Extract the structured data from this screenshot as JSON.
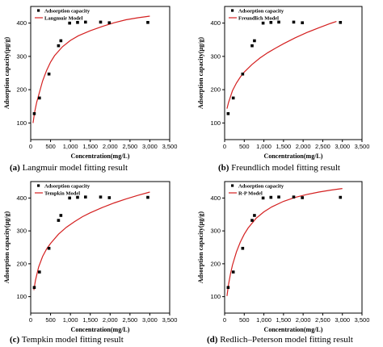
{
  "chart_data": [
    {
      "type": "scatter",
      "caption_letter": "(a)",
      "caption_text": "Langmuir model fitting result",
      "xlabel": "Concentration(mg/L)",
      "ylabel": "Adsorption capacity(μg/g)",
      "xlim": [
        0,
        3500
      ],
      "ylim": [
        50,
        450
      ],
      "xticks": [
        "0",
        "500",
        "1,000",
        "1,500",
        "2,000",
        "2,500",
        "3,000",
        "3,500"
      ],
      "xtick_values": [
        0,
        500,
        1000,
        1500,
        2000,
        2500,
        3000,
        3500
      ],
      "yticks": [
        "100",
        "200",
        "300",
        "400"
      ],
      "ytick_values": [
        100,
        200,
        300,
        400
      ],
      "legend": {
        "placement": "top-left",
        "scatter_label": "Adsorption capacity",
        "model_label": "Langmuir Model"
      },
      "series": [
        {
          "name": "Adsorption capacity",
          "kind": "points",
          "x": [
            90,
            220,
            460,
            700,
            760,
            980,
            1180,
            1380,
            1760,
            1980,
            2950
          ],
          "y": [
            128,
            175,
            247,
            332,
            347,
            400,
            402,
            403,
            403,
            401,
            402
          ]
        },
        {
          "name": "Langmuir Model",
          "kind": "fit",
          "color": "#d42020",
          "x": [
            60,
            100,
            150,
            200,
            300,
            400,
            500,
            600,
            800,
            1000,
            1200,
            1500,
            1800,
            2100,
            2400,
            2700,
            3000
          ],
          "y": [
            100,
            133,
            162,
            183,
            226,
            258,
            283,
            302,
            329,
            348,
            362,
            377,
            390,
            401,
            410,
            416,
            421
          ]
        }
      ]
    },
    {
      "type": "scatter",
      "caption_letter": "(b)",
      "caption_text": "Freundlich model fitting result",
      "xlabel": "Concentration(mg/L)",
      "ylabel": "Adsorption capacity(μg/g)",
      "xlim": [
        0,
        3500
      ],
      "ylim": [
        50,
        450
      ],
      "xticks": [
        "0",
        "500",
        "1,000",
        "1,500",
        "2,000",
        "2,500",
        "3,000",
        "3,500"
      ],
      "xtick_values": [
        0,
        500,
        1000,
        1500,
        2000,
        2500,
        3000,
        3500
      ],
      "yticks": [
        "100",
        "200",
        "300",
        "400"
      ],
      "ytick_values": [
        100,
        200,
        300,
        400
      ],
      "legend": {
        "placement": "top-left",
        "scatter_label": "Adsorption capacity",
        "model_label": "Freundlich Model"
      },
      "series": [
        {
          "name": "Adsorption capacity",
          "kind": "points",
          "x": [
            90,
            220,
            460,
            700,
            760,
            980,
            1180,
            1380,
            1760,
            1980,
            2950
          ],
          "y": [
            128,
            175,
            247,
            332,
            347,
            400,
            402,
            403,
            403,
            401,
            402
          ]
        },
        {
          "name": "Freundlich Model",
          "kind": "fit",
          "color": "#d42020",
          "x": [
            60,
            100,
            200,
            300,
            400,
            500,
            700,
            900,
            1100,
            1300,
            1500,
            1800,
            2100,
            2400,
            2700,
            2850
          ],
          "y": [
            143,
            162,
            197,
            220,
            238,
            253,
            276,
            295,
            311,
            325,
            338,
            356,
            372,
            386,
            399,
            405
          ]
        }
      ]
    },
    {
      "type": "scatter",
      "caption_letter": "(c)",
      "caption_text": "Tempkin model fitting result",
      "xlabel": "Concentration(mg/L)",
      "ylabel": "Adsorption capacity(μg/g)",
      "xlim": [
        0,
        3500
      ],
      "ylim": [
        50,
        450
      ],
      "xticks": [
        "0",
        "500",
        "1,000",
        "1,500",
        "2,000",
        "2,500",
        "3,000",
        "3,500"
      ],
      "xtick_values": [
        0,
        500,
        1000,
        1500,
        2000,
        2500,
        3000,
        3500
      ],
      "yticks": [
        "100",
        "200",
        "300",
        "400"
      ],
      "ytick_values": [
        100,
        200,
        300,
        400
      ],
      "legend": {
        "placement": "top-left",
        "scatter_label": "Adsorption capacity",
        "model_label": "Tempkin Model"
      },
      "series": [
        {
          "name": "Adsorption capacity",
          "kind": "points",
          "x": [
            90,
            220,
            460,
            700,
            760,
            980,
            1180,
            1380,
            1760,
            1980,
            2950
          ],
          "y": [
            128,
            175,
            247,
            332,
            347,
            400,
            402,
            403,
            403,
            401,
            402
          ]
        },
        {
          "name": "Tempkin Model",
          "kind": "fit",
          "color": "#d42020",
          "x": [
            80,
            120,
            200,
            300,
            400,
            500,
            700,
            900,
            1100,
            1300,
            1500,
            1800,
            2100,
            2400,
            2700,
            3000
          ],
          "y": [
            120,
            150,
            190,
            222,
            245,
            262,
            290,
            311,
            328,
            343,
            355,
            371,
            385,
            397,
            408,
            418
          ]
        }
      ]
    },
    {
      "type": "scatter",
      "caption_letter": "(d)",
      "caption_text": "Redlich–Peterson model fitting result",
      "xlabel": "Concentration(mg/L)",
      "ylabel": "Adsorption capacity(μg/g)",
      "xlim": [
        0,
        3500
      ],
      "ylim": [
        50,
        450
      ],
      "xticks": [
        "0",
        "500",
        "1,000",
        "1,500",
        "2,000",
        "2,500",
        "3,000",
        "3,500"
      ],
      "xtick_values": [
        0,
        500,
        1000,
        1500,
        2000,
        2500,
        3000,
        3500
      ],
      "yticks": [
        "100",
        "200",
        "300",
        "400"
      ],
      "ytick_values": [
        100,
        200,
        300,
        400
      ],
      "legend": {
        "placement": "top-left",
        "scatter_label": "Adsorption capacity",
        "model_label": "R-P Model"
      },
      "series": [
        {
          "name": "Adsorption capacity",
          "kind": "points",
          "x": [
            90,
            220,
            460,
            700,
            760,
            980,
            1180,
            1380,
            1760,
            1980,
            2950
          ],
          "y": [
            128,
            175,
            247,
            332,
            347,
            400,
            402,
            403,
            403,
            401,
            402
          ]
        },
        {
          "name": "R-P Model",
          "kind": "fit",
          "color": "#d42020",
          "x": [
            60,
            100,
            150,
            200,
            300,
            400,
            500,
            600,
            800,
            1000,
            1200,
            1500,
            1800,
            2100,
            2400,
            2700,
            3000
          ],
          "y": [
            102,
            138,
            170,
            196,
            236,
            266,
            290,
            309,
            338,
            358,
            373,
            390,
            402,
            411,
            418,
            424,
            429
          ]
        }
      ]
    }
  ]
}
